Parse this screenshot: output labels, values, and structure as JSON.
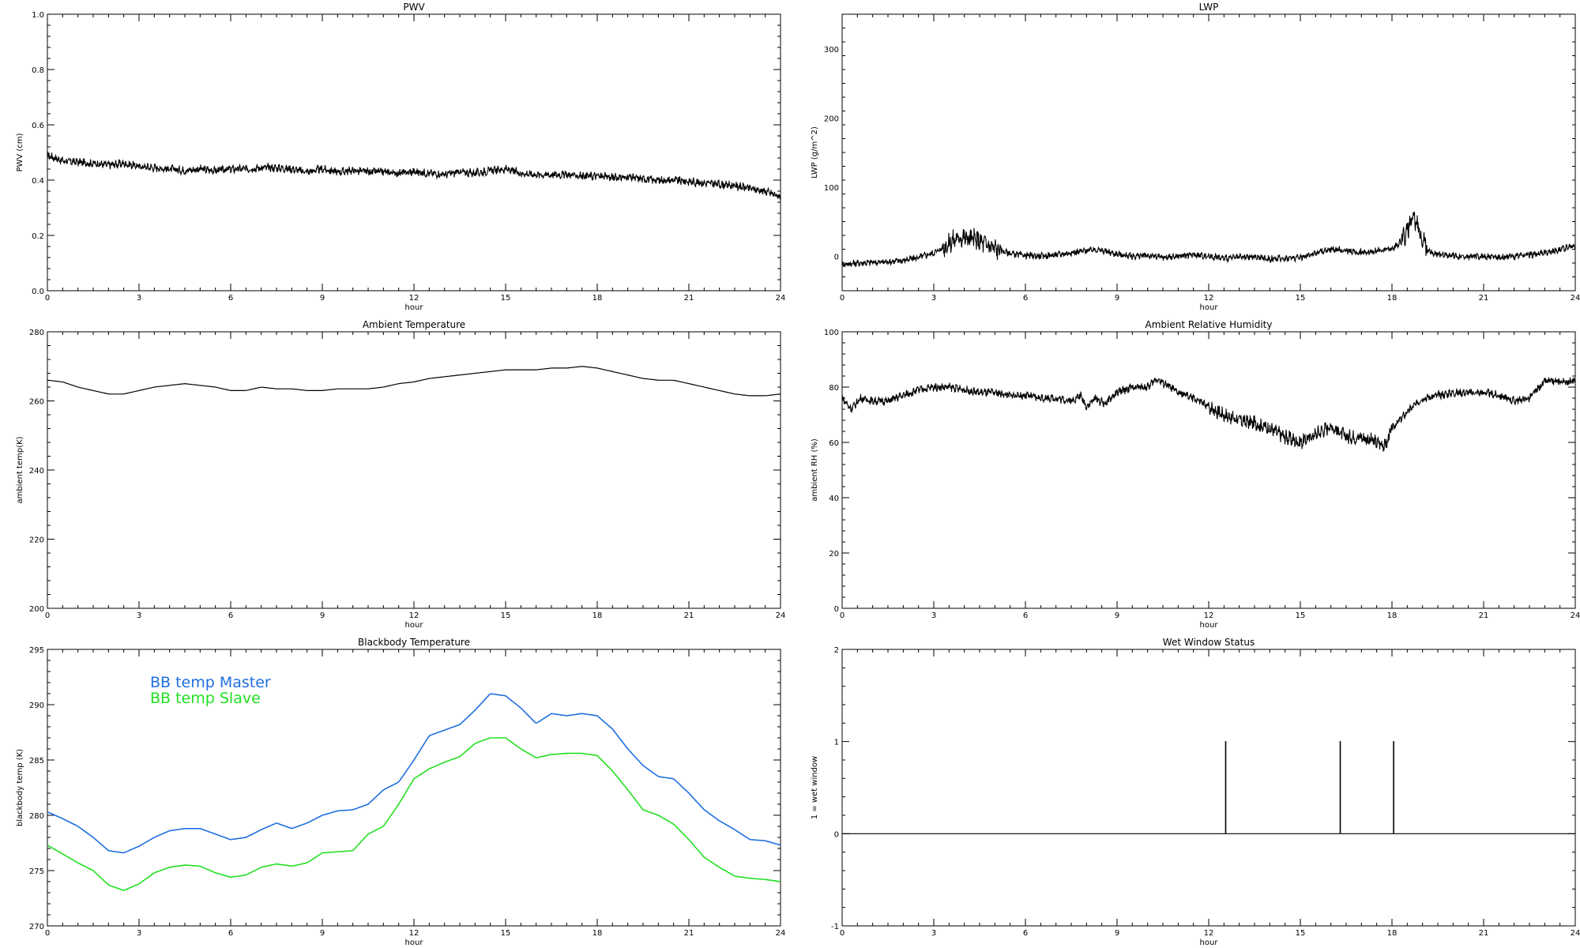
{
  "chart_data": [
    {
      "type": "line",
      "title": "PWV",
      "xlabel": "hour",
      "ylabel": "PWV (cm)",
      "xlim": [
        0,
        24
      ],
      "ylim": [
        0,
        1
      ],
      "xticks": [
        "0",
        "3",
        "6",
        "9",
        "12",
        "15",
        "18",
        "21",
        "24"
      ],
      "yticks": [
        "0.0",
        "0.2",
        "0.4",
        "0.6",
        "0.8",
        "1.0"
      ],
      "style": "noisy",
      "series": [
        {
          "color": "#000000",
          "x": [
            0,
            0.5,
            1,
            1.5,
            2,
            2.5,
            3,
            3.5,
            4,
            4.5,
            5,
            5.5,
            6,
            6.5,
            7,
            7.5,
            8,
            8.5,
            9,
            9.5,
            10,
            10.5,
            11,
            11.5,
            12,
            12.5,
            13,
            13.5,
            14,
            14.5,
            15,
            15.5,
            16,
            16.5,
            17,
            17.5,
            18,
            18.5,
            19,
            19.5,
            20,
            20.5,
            21,
            21.5,
            22,
            22.5,
            23,
            23.5,
            24
          ],
          "values": [
            0.49,
            0.47,
            0.465,
            0.46,
            0.455,
            0.46,
            0.45,
            0.445,
            0.44,
            0.435,
            0.44,
            0.435,
            0.44,
            0.44,
            0.445,
            0.445,
            0.44,
            0.43,
            0.44,
            0.43,
            0.435,
            0.43,
            0.43,
            0.425,
            0.43,
            0.425,
            0.42,
            0.43,
            0.425,
            0.435,
            0.44,
            0.425,
            0.42,
            0.42,
            0.42,
            0.415,
            0.415,
            0.41,
            0.41,
            0.405,
            0.4,
            0.4,
            0.395,
            0.39,
            0.385,
            0.38,
            0.37,
            0.36,
            0.34
          ]
        }
      ]
    },
    {
      "type": "line",
      "title": "LWP",
      "xlabel": "hour",
      "ylabel": "LWP (g/m^2)",
      "xlim": [
        0,
        24
      ],
      "ylim": [
        -50,
        350
      ],
      "xticks": [
        "0",
        "3",
        "6",
        "9",
        "12",
        "15",
        "18",
        "21",
        "24"
      ],
      "yticks": [
        "0",
        "100",
        "200",
        "300"
      ],
      "style": "noisy",
      "series": [
        {
          "color": "#000000",
          "x": [
            0,
            0.5,
            1,
            1.5,
            2,
            2.5,
            3,
            3.3,
            3.6,
            3.9,
            4.2,
            4.5,
            4.8,
            5.2,
            5.6,
            6,
            6.5,
            7,
            7.5,
            8,
            8.3,
            8.6,
            9,
            9.5,
            10,
            10.5,
            11,
            11.5,
            12,
            12.5,
            13,
            13.5,
            14,
            14.5,
            15,
            15.5,
            16,
            16.5,
            17,
            17.5,
            18,
            18.3,
            18.5,
            18.7,
            18.9,
            19.1,
            19.3,
            19.6,
            20,
            20.5,
            21,
            21.5,
            22,
            22.5,
            23,
            23.5,
            24
          ],
          "values": [
            -12,
            -10,
            -9,
            -8,
            -6,
            -2,
            5,
            12,
            22,
            28,
            25,
            22,
            15,
            8,
            3,
            1,
            0,
            2,
            5,
            8,
            10,
            7,
            3,
            0,
            1,
            -2,
            0,
            2,
            0,
            -3,
            -2,
            -1,
            -4,
            -3,
            -2,
            5,
            10,
            8,
            5,
            8,
            10,
            22,
            38,
            52,
            40,
            15,
            5,
            3,
            0,
            -1,
            0,
            -2,
            0,
            2,
            5,
            10,
            15
          ]
        }
      ]
    },
    {
      "type": "line",
      "title": "Ambient Temperature",
      "xlabel": "hour",
      "ylabel": "ambient temp(K)",
      "xlim": [
        0,
        24
      ],
      "ylim": [
        200,
        280
      ],
      "xticks": [
        "0",
        "3",
        "6",
        "9",
        "12",
        "15",
        "18",
        "21",
        "24"
      ],
      "yticks": [
        "200",
        "220",
        "240",
        "260",
        "280"
      ],
      "style": "smooth",
      "series": [
        {
          "color": "#000000",
          "x": [
            0,
            0.5,
            1,
            1.5,
            2,
            2.5,
            3,
            3.5,
            4,
            4.5,
            5,
            5.5,
            6,
            6.5,
            7,
            7.5,
            8,
            8.5,
            9,
            9.5,
            10,
            10.5,
            11,
            11.5,
            12,
            12.5,
            13,
            13.5,
            14,
            14.5,
            15,
            15.5,
            16,
            16.5,
            17,
            17.5,
            18,
            18.5,
            19,
            19.5,
            20,
            20.5,
            21,
            21.5,
            22,
            22.5,
            23,
            23.5,
            24
          ],
          "values": [
            266,
            265.5,
            264,
            263,
            262,
            262,
            263,
            264,
            264.5,
            265,
            264.5,
            264,
            263,
            263,
            264,
            263.5,
            263.5,
            263,
            263,
            263.5,
            263.5,
            263.5,
            264,
            265,
            265.5,
            266.5,
            267,
            267.5,
            268,
            268.5,
            269,
            269,
            269,
            269.5,
            269.5,
            270,
            269.5,
            268.5,
            267.5,
            266.5,
            266,
            266,
            265,
            264,
            263,
            262,
            261.5,
            261.5,
            262
          ]
        }
      ]
    },
    {
      "type": "line",
      "title": "Ambient Relative Humidity",
      "xlabel": "hour",
      "ylabel": "ambient RH (%)",
      "xlim": [
        0,
        24
      ],
      "ylim": [
        0,
        100
      ],
      "xticks": [
        "0",
        "3",
        "6",
        "9",
        "12",
        "15",
        "18",
        "21",
        "24"
      ],
      "yticks": [
        "0",
        "20",
        "40",
        "60",
        "80",
        "100"
      ],
      "style": "noisy",
      "series": [
        {
          "color": "#000000",
          "x": [
            0,
            0.3,
            0.6,
            1,
            1.5,
            2,
            2.5,
            3,
            3.5,
            4,
            4.5,
            5,
            5.5,
            6,
            6.5,
            7,
            7.5,
            7.8,
            8,
            8.3,
            8.6,
            9,
            9.5,
            10,
            10.3,
            10.6,
            11,
            11.5,
            12,
            12.5,
            13,
            13.5,
            14,
            14.5,
            15,
            15.5,
            16,
            16.5,
            17,
            17.5,
            17.8,
            18,
            18.5,
            19,
            19.5,
            20,
            20.5,
            21,
            21.5,
            22,
            22.5,
            23,
            23.5,
            24
          ],
          "values": [
            76,
            72,
            76,
            75,
            75,
            77,
            79,
            80,
            80,
            79,
            78,
            78,
            77,
            77,
            76,
            76,
            75,
            77,
            73,
            76,
            74,
            78,
            80,
            80,
            83,
            81,
            78,
            76,
            73,
            70,
            68,
            67,
            65,
            62,
            60,
            63,
            66,
            62,
            62,
            60,
            59,
            65,
            71,
            76,
            77,
            78,
            78,
            78,
            77,
            75,
            76,
            82,
            82,
            82
          ]
        }
      ]
    },
    {
      "type": "line",
      "title": "Blackbody Temperature",
      "xlabel": "hour",
      "ylabel": "blackbody temp (K)",
      "xlim": [
        0,
        24
      ],
      "ylim": [
        270,
        295
      ],
      "xticks": [
        "0",
        "3",
        "6",
        "9",
        "12",
        "15",
        "18",
        "21",
        "24"
      ],
      "yticks": [
        "270",
        "275",
        "280",
        "285",
        "290",
        "295"
      ],
      "style": "smooth",
      "legend": "top-left",
      "series": [
        {
          "name": "BB temp Master",
          "color": "#1f6fe0",
          "x": [
            0,
            0.5,
            1,
            1.5,
            2,
            2.5,
            3,
            3.5,
            4,
            4.5,
            5,
            5.5,
            6,
            6.5,
            7,
            7.5,
            8,
            8.5,
            9,
            9.5,
            10,
            10.5,
            11,
            11.5,
            12,
            12.5,
            13,
            13.5,
            14,
            14.5,
            15,
            15.5,
            16,
            16.5,
            17,
            17.5,
            18,
            18.5,
            19,
            19.5,
            20,
            20.5,
            21,
            21.5,
            22,
            22.5,
            23,
            23.5,
            24
          ],
          "values": [
            280.3,
            279.7,
            279,
            278,
            276.8,
            276.6,
            277.2,
            278,
            278.6,
            278.8,
            278.8,
            278.3,
            277.8,
            278,
            278.7,
            279.3,
            278.8,
            279.3,
            280,
            280.4,
            280.5,
            281,
            282.3,
            283,
            285,
            287.2,
            287.7,
            288.2,
            289.5,
            291,
            290.8,
            289.7,
            288.3,
            289.2,
            289,
            289.2,
            289,
            287.8,
            286,
            284.5,
            283.5,
            283.3,
            282,
            280.5,
            279.5,
            278.7,
            277.8,
            277.7,
            277.3
          ]
        },
        {
          "name": "BB temp Slave",
          "color": "#22e022",
          "x": [
            0,
            0.5,
            1,
            1.5,
            2,
            2.5,
            3,
            3.5,
            4,
            4.5,
            5,
            5.5,
            6,
            6.5,
            7,
            7.5,
            8,
            8.5,
            9,
            9.5,
            10,
            10.5,
            11,
            11.5,
            12,
            12.5,
            13,
            13.5,
            14,
            14.5,
            15,
            15.5,
            16,
            16.5,
            17,
            17.5,
            18,
            18.5,
            19,
            19.5,
            20,
            20.5,
            21,
            21.5,
            22,
            22.5,
            23,
            23.5,
            24
          ],
          "values": [
            277.3,
            276.5,
            275.7,
            275,
            273.7,
            273.2,
            273.8,
            274.8,
            275.3,
            275.5,
            275.4,
            274.8,
            274.4,
            274.6,
            275.3,
            275.6,
            275.4,
            275.7,
            276.6,
            276.7,
            276.8,
            278.3,
            279,
            281,
            283.3,
            284.2,
            284.8,
            285.3,
            286.5,
            287,
            287,
            286,
            285.2,
            285.5,
            285.6,
            285.6,
            285.4,
            284,
            282.3,
            280.5,
            280,
            279.2,
            277.8,
            276.2,
            275.3,
            274.5,
            274.3,
            274.2,
            274
          ]
        }
      ]
    },
    {
      "type": "line",
      "title": "Wet Window Status",
      "xlabel": "hour",
      "ylabel": "1 = wet window",
      "xlim": [
        0,
        24
      ],
      "ylim": [
        -1,
        2
      ],
      "xticks": [
        "0",
        "3",
        "6",
        "9",
        "12",
        "15",
        "18",
        "21",
        "24"
      ],
      "yticks": [
        "-1",
        "0",
        "1",
        "2"
      ],
      "style": "step",
      "series": [
        {
          "color": "#000000",
          "x": [
            0,
            12.55,
            12.55,
            12.56,
            12.56,
            16.3,
            16.3,
            16.31,
            16.31,
            18.05,
            18.05,
            18.06,
            18.06,
            24
          ],
          "values": [
            0,
            0,
            1,
            1,
            0,
            0,
            1,
            1,
            0,
            0,
            1,
            1,
            0,
            0
          ]
        }
      ]
    }
  ]
}
